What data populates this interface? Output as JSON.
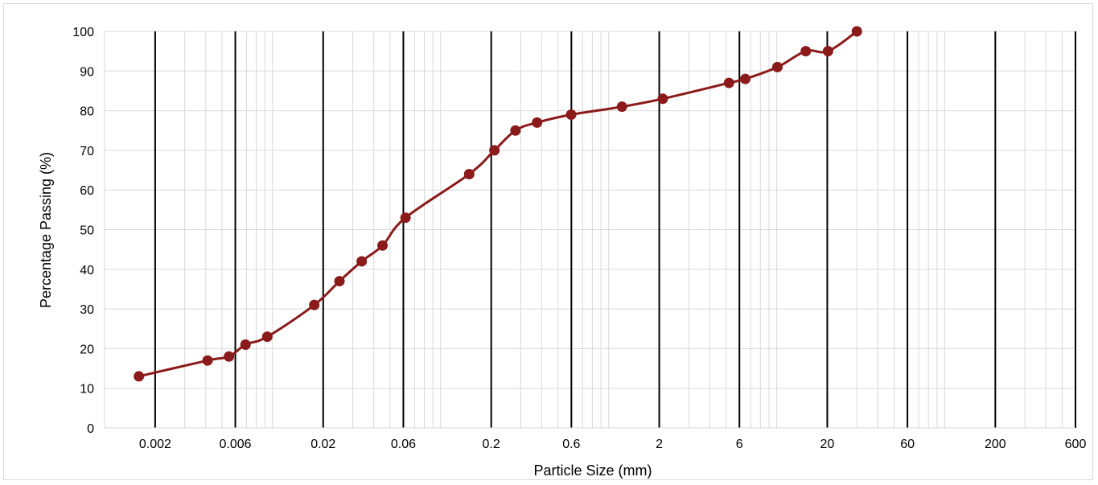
{
  "chart_data": {
    "type": "line",
    "xlabel": "Particle Size (mm)",
    "ylabel": "Percentage Passing (%)",
    "x_scale": "log",
    "xlim": [
      0.001,
      600
    ],
    "ylim": [
      0,
      100
    ],
    "x_tick_labels": [
      "0.002",
      "0.006",
      "0.02",
      "0.06",
      "0.2",
      "0.6",
      "2",
      "6",
      "20",
      "60",
      "200",
      "600"
    ],
    "y_tick_labels": [
      "0",
      "10",
      "20",
      "30",
      "40",
      "50",
      "60",
      "70",
      "80",
      "90",
      "100"
    ],
    "major_vertical_lines_at": [
      0.002,
      0.006,
      0.02,
      0.06,
      0.2,
      0.6,
      2,
      6,
      20,
      60,
      200,
      600
    ],
    "grid": true,
    "series": [
      {
        "color": "#8b1a1a",
        "marker": "circle",
        "x": [
          0.0016,
          0.0041,
          0.0055,
          0.0069,
          0.0093,
          0.0177,
          0.025,
          0.0339,
          0.0451,
          0.0618,
          0.1479,
          0.209,
          0.2789,
          0.3748,
          0.5981,
          1.2,
          2.1,
          5.2,
          6.5,
          10.1,
          14.9,
          20.2,
          30.0
        ],
        "y": [
          13,
          17,
          18,
          21,
          23,
          31,
          37,
          42,
          46,
          53,
          64,
          70,
          75,
          77,
          79,
          81,
          83,
          87,
          88,
          91,
          95,
          95,
          100
        ]
      }
    ],
    "colors": {
      "major_line": "#000000",
      "minor_grid": "#d9d9d9",
      "series": "#8b1a1a"
    }
  }
}
